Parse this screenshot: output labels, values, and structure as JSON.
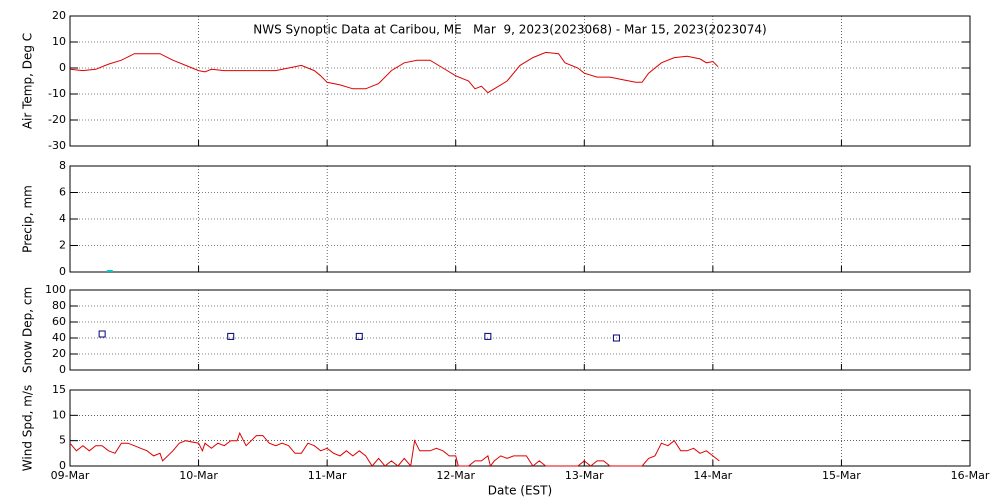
{
  "chart_data": [
    {
      "type": "line",
      "title": "NWS Synoptic Data at Caribou, ME   Mar  9, 2023(2023068) - Mar 15, 2023(2023074)",
      "ylabel": "Air Temp, Deg C",
      "ylim": [
        -30,
        20
      ],
      "yticks": [
        -30,
        -20,
        -10,
        0,
        10,
        20
      ],
      "grid": true,
      "x": [
        0,
        0.1,
        0.2,
        0.3,
        0.4,
        0.5,
        0.6,
        0.7,
        0.8,
        0.9,
        1.0,
        1.05,
        1.1,
        1.2,
        1.4,
        1.6,
        1.7,
        1.8,
        1.9,
        1.95,
        2.0,
        2.1,
        2.2,
        2.3,
        2.4,
        2.5,
        2.6,
        2.7,
        2.8,
        2.9,
        3.0,
        3.1,
        3.15,
        3.2,
        3.25,
        3.3,
        3.4,
        3.5,
        3.6,
        3.7,
        3.8,
        3.85,
        3.95,
        4.0,
        4.1,
        4.2,
        4.3,
        4.4,
        4.45,
        4.5,
        4.6,
        4.7,
        4.8,
        4.9,
        4.95,
        5.0,
        5.04
      ],
      "series": [
        {
          "color": "#e00000",
          "values": [
            -0.5,
            -1,
            -0.5,
            1.5,
            3,
            5.5,
            5.5,
            5.5,
            3,
            1,
            -1,
            -1.5,
            -0.5,
            -1,
            -1,
            -1,
            0,
            1,
            -1,
            -3,
            -5.5,
            -6.5,
            -8,
            -8,
            -6,
            -1,
            2,
            3,
            3,
            0,
            -3,
            -5,
            -8,
            -7,
            -9.5,
            -8,
            -5,
            1,
            4,
            6,
            5.5,
            2,
            0,
            -2,
            -3.5,
            -3.5,
            -4.5,
            -5.5,
            -5.5,
            -2,
            2,
            4,
            4.5,
            3.5,
            2,
            2.5,
            0.5
          ]
        }
      ]
    },
    {
      "type": "line",
      "ylabel": "Precip, mm",
      "ylim": [
        0,
        8
      ],
      "yticks": [
        0,
        2,
        4,
        6,
        8
      ],
      "grid": true,
      "x": [
        0.31
      ],
      "series": [
        {
          "color": "#00c8c8",
          "values": [
            0
          ]
        }
      ]
    },
    {
      "type": "scatter",
      "ylabel": "Snow Dep, cm",
      "ylim": [
        0,
        100
      ],
      "yticks": [
        0,
        20,
        40,
        60,
        80,
        100
      ],
      "grid": true,
      "x": [
        0.25,
        1.25,
        2.25,
        3.25,
        4.25
      ],
      "series": [
        {
          "color": "#000080",
          "values": [
            45,
            42,
            42,
            42,
            40
          ]
        }
      ]
    },
    {
      "type": "line",
      "ylabel": "Wind Spd, m/s",
      "xlabel": "Date (EST)",
      "ylim": [
        0,
        15
      ],
      "yticks": [
        0,
        5,
        10,
        15
      ],
      "grid": true,
      "xlim": [
        0,
        7
      ],
      "xticks": [
        {
          "value": 0,
          "label": "09-Mar"
        },
        {
          "value": 1,
          "label": "10-Mar"
        },
        {
          "value": 2,
          "label": "11-Mar"
        },
        {
          "value": 3,
          "label": "12-Mar"
        },
        {
          "value": 4,
          "label": "13-Mar"
        },
        {
          "value": 5,
          "label": "14-Mar"
        },
        {
          "value": 6,
          "label": "15-Mar"
        },
        {
          "value": 7,
          "label": "16-Mar"
        }
      ],
      "x": [
        0,
        0.05,
        0.1,
        0.15,
        0.2,
        0.25,
        0.3,
        0.35,
        0.4,
        0.45,
        0.5,
        0.55,
        0.6,
        0.65,
        0.7,
        0.72,
        0.8,
        0.85,
        0.9,
        1.0,
        1.03,
        1.05,
        1.1,
        1.15,
        1.2,
        1.25,
        1.3,
        1.32,
        1.37,
        1.45,
        1.5,
        1.55,
        1.6,
        1.65,
        1.7,
        1.75,
        1.8,
        1.85,
        1.9,
        1.95,
        2.0,
        2.05,
        2.1,
        2.15,
        2.2,
        2.25,
        2.3,
        2.35,
        2.4,
        2.45,
        2.5,
        2.55,
        2.6,
        2.65,
        2.68,
        2.72,
        2.8,
        2.85,
        2.9,
        2.95,
        3.0,
        3.02,
        3.1,
        3.15,
        3.2,
        3.25,
        3.27,
        3.3,
        3.35,
        3.4,
        3.45,
        3.55,
        3.6,
        3.65,
        3.7,
        3.8,
        3.95,
        4.0,
        4.05,
        4.1,
        4.15,
        4.2,
        4.25,
        4.45,
        4.5,
        4.55,
        4.6,
        4.65,
        4.7,
        4.75,
        4.8,
        4.85,
        4.9,
        4.95,
        5.0,
        5.05
      ],
      "series": [
        {
          "color": "#e00000",
          "values": [
            4.5,
            3,
            4,
            3,
            4,
            4,
            3,
            2.5,
            4.5,
            4.5,
            4,
            3.5,
            3,
            2,
            2.5,
            1,
            3,
            4.5,
            5,
            4.5,
            3,
            4.5,
            3.5,
            4.5,
            4,
            5,
            5,
            6.5,
            4,
            6,
            6,
            4.5,
            4,
            4.5,
            4,
            2.5,
            2.5,
            4.5,
            4,
            3,
            3.5,
            2.5,
            2,
            3,
            2,
            3,
            2,
            0,
            1.5,
            0,
            1,
            0,
            1.5,
            0,
            5,
            3,
            3,
            3.5,
            3,
            2,
            2,
            0,
            0,
            1,
            1,
            2,
            0,
            1,
            2,
            1.5,
            2,
            2,
            0,
            1,
            0,
            0,
            0,
            1,
            0,
            1,
            1,
            0,
            0,
            0,
            1.5,
            2,
            4.5,
            4,
            5,
            3,
            3,
            3.5,
            2.5,
            3,
            2,
            1
          ]
        }
      ]
    }
  ]
}
